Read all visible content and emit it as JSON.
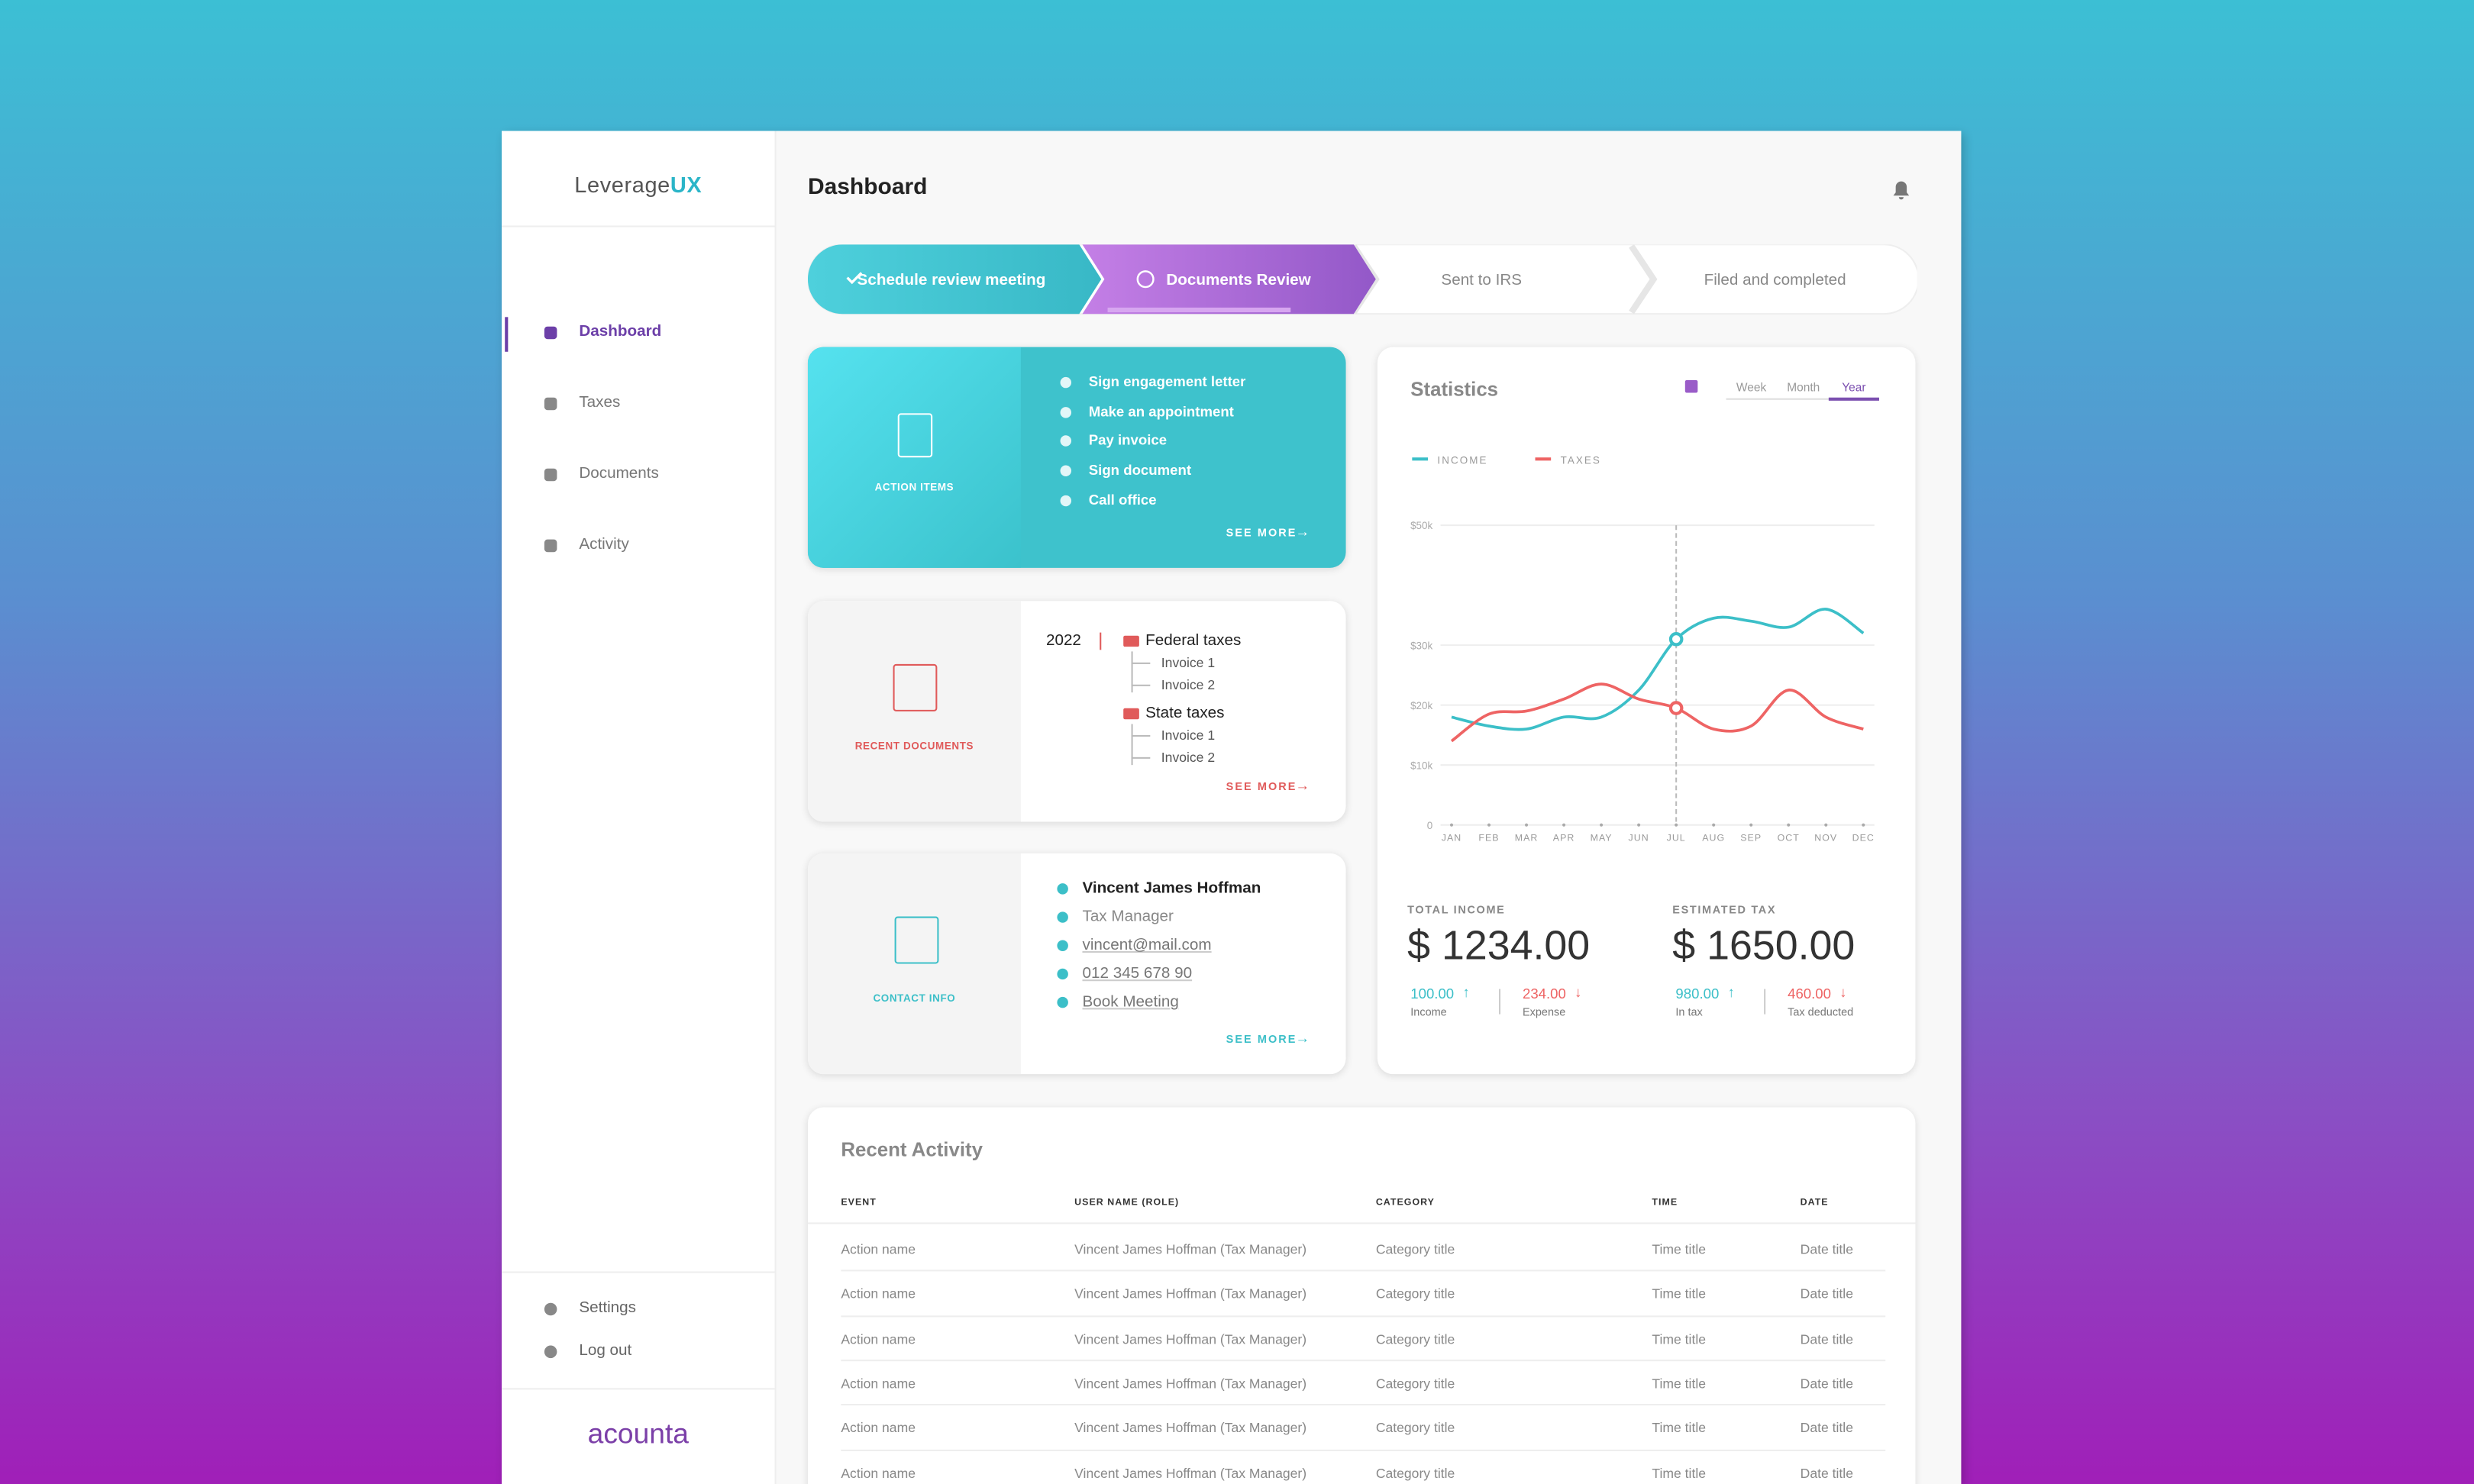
{
  "sidebar": {
    "logo_prefix": "Leverage",
    "logo_suffix": "UX",
    "nav": [
      "Dashboard",
      "Taxes",
      "Documents",
      "Activity"
    ],
    "footer_nav": [
      "Settings",
      "Log out"
    ],
    "brand": "acounta"
  },
  "header": {
    "title": "Dashboard"
  },
  "steps": [
    "Schedule review meeting",
    "Documents Review",
    "Sent to IRS",
    "Filed and completed"
  ],
  "action_items": {
    "label": "ACTION ITEMS",
    "items": [
      "Sign engagement letter",
      "Make an appointment",
      "Pay invoice",
      "Sign document",
      "Call office"
    ],
    "see_more": "SEE MORE"
  },
  "recent_documents": {
    "label": "RECENT DOCUMENTS",
    "year": "2022",
    "folders": [
      {
        "name": "Federal taxes",
        "files": [
          "Invoice 1",
          "Invoice 2"
        ]
      },
      {
        "name": "State taxes",
        "files": [
          "Invoice 1",
          "Invoice 2"
        ]
      }
    ],
    "see_more": "SEE MORE"
  },
  "contact_info": {
    "label": "CONTACT INFO",
    "name": "Vincent James Hoffman",
    "role": "Tax Manager",
    "email": "vincent@mail.com",
    "phone": "012 345 678 90",
    "action": "Book Meeting",
    "see_more": "SEE MORE"
  },
  "chart_data": {
    "type": "line",
    "title": "Statistics",
    "periods": [
      "Week",
      "Month",
      "Year"
    ],
    "categories": [
      "JAN",
      "FEB",
      "MAR",
      "APR",
      "MAY",
      "JUN",
      "JUL",
      "AUG",
      "SEP",
      "OCT",
      "NOV",
      "DEC"
    ],
    "series": [
      {
        "name": "INCOME",
        "color": "#3cbfc8",
        "values": [
          18000,
          16500,
          16000,
          18000,
          18000,
          22500,
          31000,
          34500,
          34000,
          33000,
          36000,
          32000
        ]
      },
      {
        "name": "TAXES",
        "color": "#ee6464",
        "values": [
          14000,
          18500,
          19000,
          21000,
          23500,
          21000,
          19500,
          16000,
          16500,
          22500,
          18000,
          16000
        ]
      }
    ],
    "ylim": [
      0,
      50000
    ],
    "yticks": [
      0,
      {
        "value": 10000,
        "label": "$10k"
      },
      {
        "value": 20000,
        "label": "$20k"
      },
      {
        "value": 30000,
        "label": "$30k"
      },
      {
        "value": 50000,
        "label": "$50k"
      }
    ],
    "grid": true
  },
  "totals": [
    {
      "label": "TOTAL INCOME",
      "amount": "$ 1234.00",
      "stats": [
        {
          "value": "100.00",
          "label": "Income"
        },
        {
          "value": "234.00",
          "label": "Expense"
        }
      ]
    },
    {
      "label": "ESTIMATED TAX",
      "amount": "$ 1650.00",
      "stats": [
        {
          "value": "980.00",
          "label": "In tax"
        },
        {
          "value": "460.00",
          "label": "Tax deducted"
        }
      ]
    }
  ],
  "recent_activity": {
    "title": "Recent Activity",
    "columns": [
      "EVENT",
      "USER NAME (ROLE)",
      "CATEGORY",
      "TIME",
      "DATE"
    ],
    "rows": [
      [
        "Action name",
        "Vincent James Hoffman (Tax Manager)",
        "Category title",
        "Time title",
        "Date title"
      ],
      [
        "Action name",
        "Vincent James Hoffman (Tax Manager)",
        "Category title",
        "Time title",
        "Date title"
      ],
      [
        "Action name",
        "Vincent James Hoffman (Tax Manager)",
        "Category title",
        "Time title",
        "Date title"
      ],
      [
        "Action name",
        "Vincent James Hoffman (Tax Manager)",
        "Category title",
        "Time title",
        "Date title"
      ],
      [
        "Action name",
        "Vincent James Hoffman (Tax Manager)",
        "Category title",
        "Time title",
        "Date title"
      ],
      [
        "Action name",
        "Vincent James Hoffman (Tax Manager)",
        "Category title",
        "Time title",
        "Date title"
      ]
    ]
  }
}
